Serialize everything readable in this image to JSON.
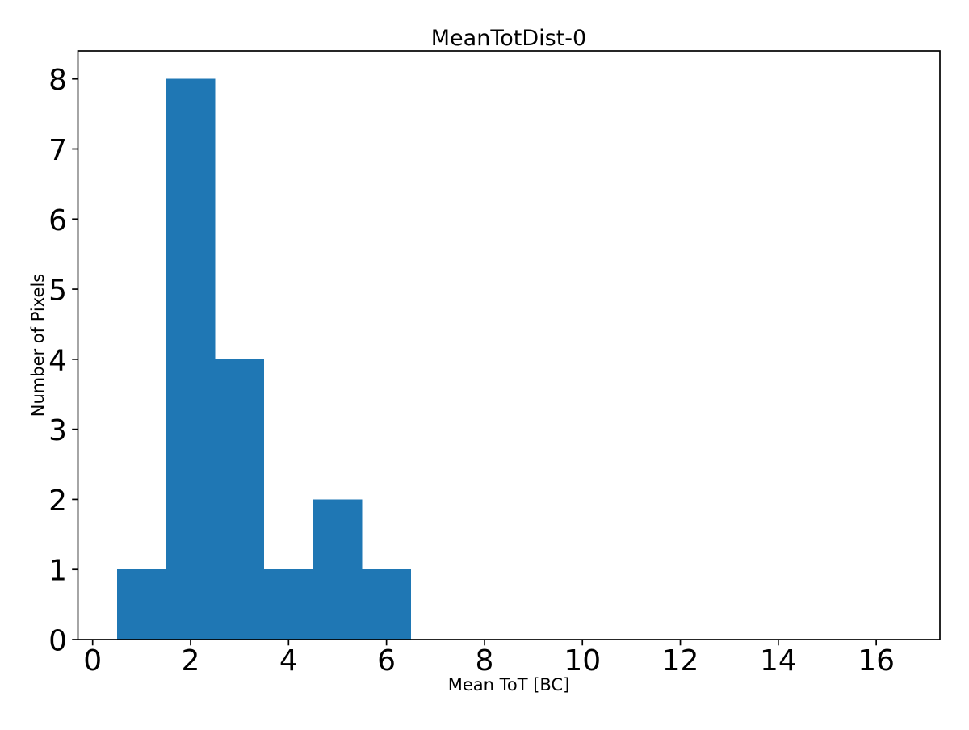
{
  "figure": {
    "background": "#ffffff"
  },
  "chart_data": {
    "type": "bar",
    "subtype": "histogram",
    "title": "MeanTotDist-0",
    "xlabel": "Mean ToT [BC]",
    "ylabel": "Number of Pixels",
    "bin_edges": [
      0.5,
      1.5,
      2.5,
      3.5,
      4.5,
      5.5,
      6.5,
      7.5,
      8.5,
      9.5,
      10.5,
      11.5,
      12.5,
      13.5,
      14.5,
      15.5,
      16.5
    ],
    "counts": [
      1,
      8,
      4,
      1,
      2,
      1,
      0,
      0,
      0,
      0,
      0,
      0,
      0,
      0,
      0,
      0
    ],
    "bar_color": "#1f77b4",
    "axis_color": "#000000",
    "xlim": [
      -0.3,
      17.3
    ],
    "ylim": [
      0,
      8.4
    ],
    "xticks": [
      0,
      2,
      4,
      6,
      8,
      10,
      12,
      14,
      16
    ],
    "yticks": [
      0,
      1,
      2,
      3,
      4,
      5,
      6,
      7,
      8
    ],
    "grid": false,
    "legend": null
  }
}
